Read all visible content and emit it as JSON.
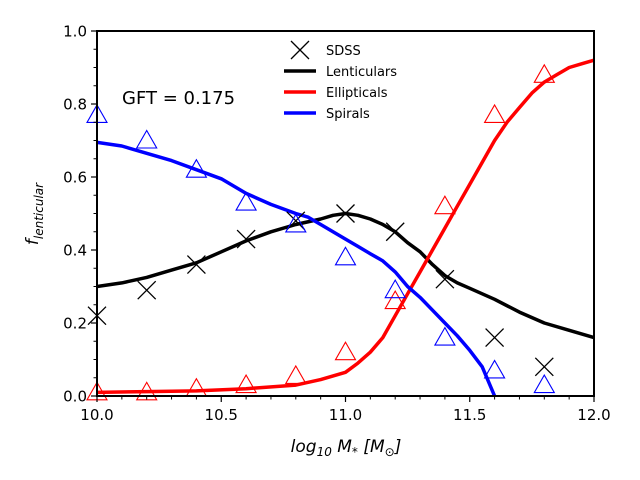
{
  "chart_data": {
    "type": "line",
    "xlabel": "log10 M* [M⊙]",
    "xlabel_parts": {
      "a": "log",
      "b": "10",
      "c": " M",
      "d": "*",
      "e": " [M",
      "f": "⊙",
      "g": "]"
    },
    "ylabel": "f_lenticular",
    "ylabel_parts": {
      "a": "f",
      "b": "lenticular"
    },
    "xlim": [
      10.0,
      12.0
    ],
    "ylim": [
      0.0,
      1.0
    ],
    "x_ticks": [
      10.0,
      10.5,
      11.0,
      11.5,
      12.0
    ],
    "x_tick_labels": [
      "10.0",
      "10.5",
      "11.0",
      "11.5",
      "12.0"
    ],
    "y_ticks": [
      0.0,
      0.2,
      0.4,
      0.6,
      0.8,
      1.0
    ],
    "y_tick_labels": [
      "0.0",
      "0.2",
      "0.4",
      "0.6",
      "0.8",
      "1.0"
    ],
    "annotation": "GFT = 0.175",
    "legend_position": "top-center",
    "grid": false,
    "legend": [
      {
        "label": "SDSS",
        "marker": "x",
        "color": "#000000"
      },
      {
        "label": "Lenticulars",
        "marker": "line",
        "color": "#000000"
      },
      {
        "label": "Ellipticals",
        "marker": "line",
        "color": "#ff0000"
      },
      {
        "label": "Spirals",
        "marker": "line",
        "color": "#0000ff"
      }
    ],
    "lines": [
      {
        "name": "Lenticulars",
        "color": "#000000",
        "x": [
          10.0,
          10.1,
          10.2,
          10.3,
          10.4,
          10.5,
          10.6,
          10.7,
          10.8,
          10.9,
          10.95,
          11.0,
          11.05,
          11.1,
          11.15,
          11.2,
          11.25,
          11.3,
          11.35,
          11.4,
          11.45,
          11.5,
          11.6,
          11.7,
          11.8,
          11.9,
          12.0
        ],
        "y": [
          0.3,
          0.31,
          0.325,
          0.345,
          0.365,
          0.395,
          0.425,
          0.45,
          0.47,
          0.485,
          0.495,
          0.5,
          0.495,
          0.485,
          0.47,
          0.45,
          0.42,
          0.395,
          0.36,
          0.33,
          0.31,
          0.295,
          0.265,
          0.23,
          0.2,
          0.18,
          0.16
        ]
      },
      {
        "name": "Ellipticals",
        "color": "#ff0000",
        "x": [
          10.0,
          10.2,
          10.4,
          10.6,
          10.8,
          10.9,
          11.0,
          11.05,
          11.1,
          11.15,
          11.2,
          11.25,
          11.3,
          11.35,
          11.4,
          11.45,
          11.5,
          11.55,
          11.6,
          11.65,
          11.7,
          11.75,
          11.8,
          11.85,
          11.9,
          11.95,
          12.0
        ],
        "y": [
          0.01,
          0.012,
          0.014,
          0.02,
          0.03,
          0.045,
          0.065,
          0.09,
          0.12,
          0.16,
          0.22,
          0.28,
          0.34,
          0.4,
          0.46,
          0.52,
          0.58,
          0.64,
          0.7,
          0.75,
          0.79,
          0.83,
          0.86,
          0.88,
          0.9,
          0.91,
          0.92
        ]
      },
      {
        "name": "Spirals",
        "color": "#0000ff",
        "x": [
          10.0,
          10.1,
          10.2,
          10.3,
          10.4,
          10.5,
          10.6,
          10.7,
          10.8,
          10.85,
          10.9,
          11.0,
          11.05,
          11.1,
          11.15,
          11.2,
          11.25,
          11.3,
          11.35,
          11.4,
          11.45,
          11.5,
          11.55,
          11.6
        ],
        "y": [
          0.695,
          0.685,
          0.665,
          0.645,
          0.62,
          0.595,
          0.555,
          0.525,
          0.5,
          0.49,
          0.47,
          0.43,
          0.41,
          0.39,
          0.37,
          0.34,
          0.3,
          0.27,
          0.235,
          0.2,
          0.165,
          0.125,
          0.08,
          0.0
        ]
      }
    ],
    "sdss_points": {
      "Lenticulars": {
        "color": "#000000",
        "marker": "x",
        "x": [
          10.0,
          10.2,
          10.4,
          10.6,
          10.8,
          11.0,
          11.2,
          11.4,
          11.6,
          11.8
        ],
        "y": [
          0.22,
          0.29,
          0.36,
          0.43,
          0.48,
          0.5,
          0.45,
          0.32,
          0.16,
          0.08
        ]
      },
      "Ellipticals": {
        "color": "#ff0000",
        "marker": "triangle-open",
        "x": [
          10.0,
          10.2,
          10.4,
          10.6,
          10.8,
          11.0,
          11.2,
          11.4,
          11.6,
          11.8
        ],
        "y": [
          0.01,
          0.01,
          0.02,
          0.03,
          0.055,
          0.12,
          0.26,
          0.52,
          0.77,
          0.88
        ]
      },
      "Spirals": {
        "color": "#0000ff",
        "marker": "triangle-open",
        "x": [
          10.0,
          10.2,
          10.4,
          10.6,
          10.8,
          11.0,
          11.2,
          11.4,
          11.6,
          11.8
        ],
        "y": [
          0.77,
          0.7,
          0.62,
          0.53,
          0.47,
          0.38,
          0.29,
          0.16,
          0.07,
          0.03
        ]
      }
    }
  }
}
